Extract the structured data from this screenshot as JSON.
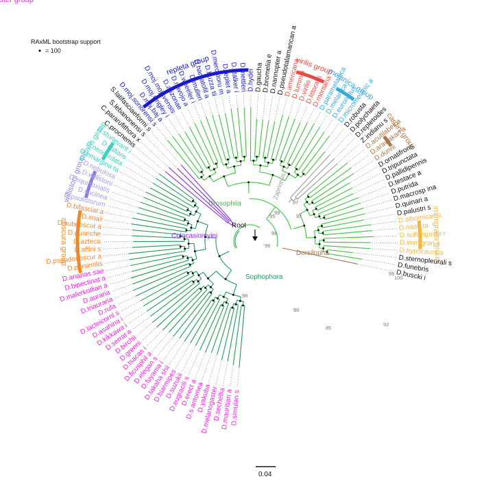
{
  "legend": {
    "title": "RAxML bootstrap support",
    "entry": "= 100"
  },
  "root_label": "Root",
  "scale_bar": {
    "label": "0.04"
  },
  "colors": {
    "drosophila_branch": "#3fbf3f",
    "sophophora_branch": "#1f9a5a",
    "colocasio_branch": "#8a2be2",
    "dorsilopha_branch": "#a07850",
    "zaprionus_branch": "#9a9a9a"
  },
  "clades": [
    {
      "label": "Drosophila",
      "color": "#3fbf3f"
    },
    {
      "label": "Zaprionus",
      "color": "#9a9a9a"
    },
    {
      "label": "Dorsilopha",
      "color": "#a07850"
    },
    {
      "label": "Colocasiomyini",
      "color": "#8a2be2"
    },
    {
      "label": "Sophophora",
      "color": "#1f9a5a"
    }
  ],
  "bootstrap_labels": [
    "99",
    "95",
    "97",
    "97",
    "99",
    "98",
    "98",
    "96",
    "85",
    "92",
    "98",
    "100"
  ],
  "groups": [
    {
      "label": "virilis group",
      "color": "#e8494a"
    },
    {
      "label": "melanica group",
      "color": "#3aa8d8"
    },
    {
      "label": "cardini group",
      "color": "#a87848"
    },
    {
      "label": "immigrans group",
      "color": "#f0b840"
    },
    {
      "label": "melanogaster group",
      "color": "#ee22dd"
    },
    {
      "label": "obscura group",
      "color": "#f0882a"
    },
    {
      "label": "willistoni group",
      "color": "#8a80dd"
    },
    {
      "label": "saltans group",
      "color": "#3ecfc0"
    },
    {
      "label": "repleta group",
      "color": "#1a1acc"
    }
  ],
  "taxa": [
    {
      "name": "D.buscki i",
      "color": "#111111"
    },
    {
      "name": "D.funebris",
      "color": "#111111"
    },
    {
      "name": "D.sternopleurali s",
      "color": "#111111"
    },
    {
      "name": "D.hypocaust a",
      "color": "#f0b840"
    },
    {
      "name": "D.immigran s",
      "color": "#f0b840"
    },
    {
      "name": "D.sulfurigaste r",
      "color": "#f0b840"
    },
    {
      "name": "D.nasu ta",
      "color": "#f0b840"
    },
    {
      "name": "D.albomican s",
      "color": "#f0b840"
    },
    {
      "name": "D.palustri s",
      "color": "#111111"
    },
    {
      "name": "D.quinari a",
      "color": "#111111"
    },
    {
      "name": "D.macrosp ina",
      "color": "#111111"
    },
    {
      "name": "D.putrida",
      "color": "#111111"
    },
    {
      "name": "D.testace a",
      "color": "#111111"
    },
    {
      "name": "D.pallidipennis",
      "color": "#111111"
    },
    {
      "name": "D.tripunctata",
      "color": "#111111"
    },
    {
      "name": "D.ornatifrons",
      "color": "#111111"
    },
    {
      "name": "D.dunni",
      "color": "#a87848"
    },
    {
      "name": "D.arawakan a",
      "color": "#a87848"
    },
    {
      "name": "D.acutilabell a",
      "color": "#a87848"
    },
    {
      "name": "Z.indianu s",
      "color": "#111111"
    },
    {
      "name": "D.repletoides",
      "color": "#111111"
    },
    {
      "name": "D.polychaeta",
      "color": "#111111"
    },
    {
      "name": "D.robusta",
      "color": "#111111"
    },
    {
      "name": "D.micromelanic a",
      "color": "#3aa8d8"
    },
    {
      "name": "D.euronotus",
      "color": "#3aa8d8"
    },
    {
      "name": "D.melanica",
      "color": "#3aa8d8"
    },
    {
      "name": "D.paramelanica",
      "color": "#3aa8d8"
    },
    {
      "name": "D.montana",
      "color": "#e8494a"
    },
    {
      "name": "D.littoralis",
      "color": "#e8494a"
    },
    {
      "name": "D.virilis",
      "color": "#e8494a"
    },
    {
      "name": "D.lummei",
      "color": "#e8494a"
    },
    {
      "name": "D.americana",
      "color": "#e8494a"
    },
    {
      "name": "D.pseudotalamancan a",
      "color": "#111111"
    },
    {
      "name": "D.nannopter a",
      "color": "#111111"
    },
    {
      "name": "D.bromelia e",
      "color": "#111111"
    },
    {
      "name": "D.gaucha",
      "color": "#111111"
    },
    {
      "name": "D.hydei",
      "color": "#1a1acc"
    },
    {
      "name": "D.mettleri",
      "color": "#1a1acc"
    },
    {
      "name": "D.stalker i",
      "color": "#1a1acc"
    },
    {
      "name": "D.replet a",
      "color": "#1a1acc"
    },
    {
      "name": "D.mercatoru m",
      "color": "#1a1acc"
    },
    {
      "name": "D.buzza tii",
      "color": "#1a1acc"
    },
    {
      "name": "D.hamatofil a",
      "color": "#1a1acc"
    },
    {
      "name": "D.mulleri",
      "color": "#1a1acc"
    },
    {
      "name": "D.wheeler i",
      "color": "#1a1acc"
    },
    {
      "name": "D.navojo a",
      "color": "#1a1acc"
    },
    {
      "name": "D.arizonae",
      "color": "#1a1acc"
    },
    {
      "name": "D.moj.mojavensis",
      "color": "#1a1acc"
    },
    {
      "name": "D.moj.wrigley i",
      "color": "#1a1acc"
    },
    {
      "name": "D.moj.baj a",
      "color": "#1a1acc"
    },
    {
      "name": "D.moj.sonorensi s",
      "color": "#1a1acc"
    },
    {
      "name": "S.latifasciaeformi s",
      "color": "#111111"
    },
    {
      "name": "S.lebanonensi s",
      "color": "#111111"
    },
    {
      "name": "C.pararufithora x",
      "color": "#111111"
    },
    {
      "name": "C.procnemis",
      "color": "#111111"
    },
    {
      "name": "D.sturtevant i",
      "color": "#3ecfc0"
    },
    {
      "name": "D.saltans",
      "color": "#3ecfc0"
    },
    {
      "name": "D.neocordata",
      "color": "#3ecfc0"
    },
    {
      "name": "D.emargina ta",
      "color": "#3ecfc0"
    },
    {
      "name": "D.nebulosa",
      "color": "#a8a0e8"
    },
    {
      "name": "D.willistoni",
      "color": "#a8a0e8"
    },
    {
      "name": "D.equinoxialis",
      "color": "#a8a0e8"
    },
    {
      "name": "D.sucinea",
      "color": "#a8a0e8"
    },
    {
      "name": "D.paulistorum",
      "color": "#a8a0e8"
    },
    {
      "name": "D.bifasciat a",
      "color": "#f0882a"
    },
    {
      "name": "D.imaii",
      "color": "#f0882a"
    },
    {
      "name": "D.subobscur a",
      "color": "#f0882a"
    },
    {
      "name": "D.guanche",
      "color": "#f0882a"
    },
    {
      "name": "D.azteca",
      "color": "#f0882a"
    },
    {
      "name": "D.affini s",
      "color": "#f0882a"
    },
    {
      "name": "D.pseudoobscur a",
      "color": "#f0882a"
    },
    {
      "name": "D.persimilis",
      "color": "#f0882a"
    },
    {
      "name": "D.ananas sae",
      "color": "#ee22dd"
    },
    {
      "name": "D.bipectinat a",
      "color": "#ee22dd"
    },
    {
      "name": "D.malerkotlian a",
      "color": "#ee22dd"
    },
    {
      "name": "D.auraria",
      "color": "#ee22dd"
    },
    {
      "name": "D.triauraria",
      "color": "#ee22dd"
    },
    {
      "name": "D.rufa",
      "color": "#ee22dd"
    },
    {
      "name": "D.lacteicorni s",
      "color": "#ee22dd"
    },
    {
      "name": "D.asahina i",
      "color": "#ee22dd"
    },
    {
      "name": "D.kikkawa i",
      "color": "#ee22dd"
    },
    {
      "name": "D.serrat a",
      "color": "#ee22dd"
    },
    {
      "name": "D.birchii",
      "color": "#ee22dd"
    },
    {
      "name": "D.greeni",
      "color": "#ee22dd"
    },
    {
      "name": "D.tsacas i",
      "color": "#ee22dd"
    },
    {
      "name": "D.ficusphil a",
      "color": "#ee22dd"
    },
    {
      "name": "D.elegan s",
      "color": "#ee22dd"
    },
    {
      "name": "D.fuyama i",
      "color": "#ee22dd"
    },
    {
      "name": "D.takaha shii",
      "color": "#ee22dd"
    },
    {
      "name": "D.biarmipes",
      "color": "#ee22dd"
    },
    {
      "name": "D.suzukii",
      "color": "#ee22dd"
    },
    {
      "name": "D.eugracili s",
      "color": "#ee22dd"
    },
    {
      "name": "D.erect a",
      "color": "#ee22dd"
    },
    {
      "name": "D.s antomea",
      "color": "#ee22dd"
    },
    {
      "name": "D.yakuba",
      "color": "#ee22dd"
    },
    {
      "name": "D.melanogaster",
      "color": "#ee22dd"
    },
    {
      "name": "D.sechellia",
      "color": "#ee22dd"
    },
    {
      "name": "D.mauritian a",
      "color": "#ee22dd"
    },
    {
      "name": "D.simulan s",
      "color": "#ee22dd"
    }
  ]
}
